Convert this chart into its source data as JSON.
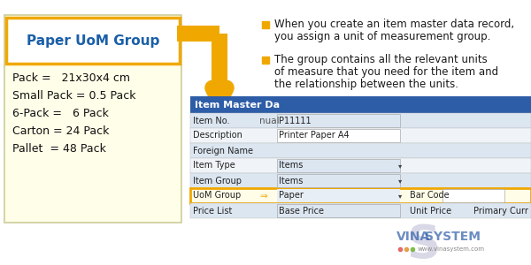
{
  "bg_color": "#ffffff",
  "left_box": {
    "title": "Paper UoM Group",
    "title_color": "#1a5fa8",
    "title_bg": "#ffffff",
    "title_border": "#f0a800",
    "box_bg": "#fffee8",
    "box_border": "#f0a800",
    "items": [
      "Pack =   21x30x4 cm",
      "Small Pack = 0.5 Pack",
      "6-Pack =   6 Pack",
      "Carton = 24 Pack",
      "Pallet  = 48 Pack"
    ]
  },
  "bullet_color": "#f0a800",
  "bullet_text_color": "#1a1a1a",
  "bullets": [
    [
      "When you create an item master data record,",
      "you assign a unit of measurement group."
    ],
    [
      "The group contains all the relevant units",
      "of measure that you need for the item and",
      "the relationship between the units."
    ]
  ],
  "arrow_color": "#f0a800",
  "table": {
    "header": "Item Master Da",
    "header_bg": "#2e5da8",
    "header_color": "#ffffff",
    "row_bg_alt": "#dce6f1",
    "row_bg_white": "#f0f4f8",
    "val_bg": "#e8eef5",
    "highlight_bg": "#fffde8",
    "highlight_border": "#f0a800",
    "rows": [
      [
        "Item No.",
        "nual",
        "P11111",
        ""
      ],
      [
        "Description",
        "",
        "Printer Paper A4",
        ""
      ],
      [
        "Foreign Name",
        "",
        "",
        ""
      ],
      [
        "Item Type",
        "",
        "Items",
        "▾"
      ],
      [
        "Item Group",
        "",
        "Items",
        "▾"
      ],
      [
        "UoM Group",
        "⇒",
        "Paper",
        "▾"
      ],
      [
        "Price List",
        "",
        "Base Price",
        ""
      ]
    ],
    "extra_row5": [
      "Bar Code",
      "",
      "Unit Price",
      "Primary Curr"
    ]
  },
  "vinasystem": {
    "vina_color": "#2e5da8",
    "s_color": "#9090bb",
    "ystem_color": "#2e5da8",
    "dots": [
      "#e05050",
      "#e09030",
      "#70b030"
    ],
    "url": "www.vinasystem.com"
  }
}
